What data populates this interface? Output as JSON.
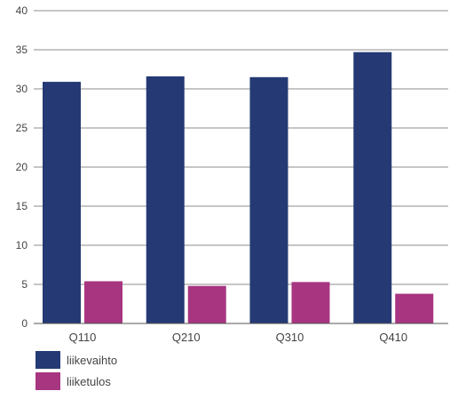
{
  "chart_data": {
    "type": "bar",
    "categories": [
      "Q110",
      "Q210",
      "Q310",
      "Q410"
    ],
    "series": [
      {
        "name": "liikevaihto",
        "values": [
          30.9,
          31.6,
          31.5,
          34.7
        ]
      },
      {
        "name": "liiketulos",
        "values": [
          5.4,
          4.8,
          5.3,
          3.8
        ]
      }
    ],
    "ylim": [
      0,
      40
    ],
    "yticks": [
      0,
      5,
      10,
      15,
      20,
      25,
      30,
      35,
      40
    ],
    "grid": true,
    "legend_position": "bottom-left",
    "colors": [
      "#253a74",
      "#a83580"
    ]
  }
}
